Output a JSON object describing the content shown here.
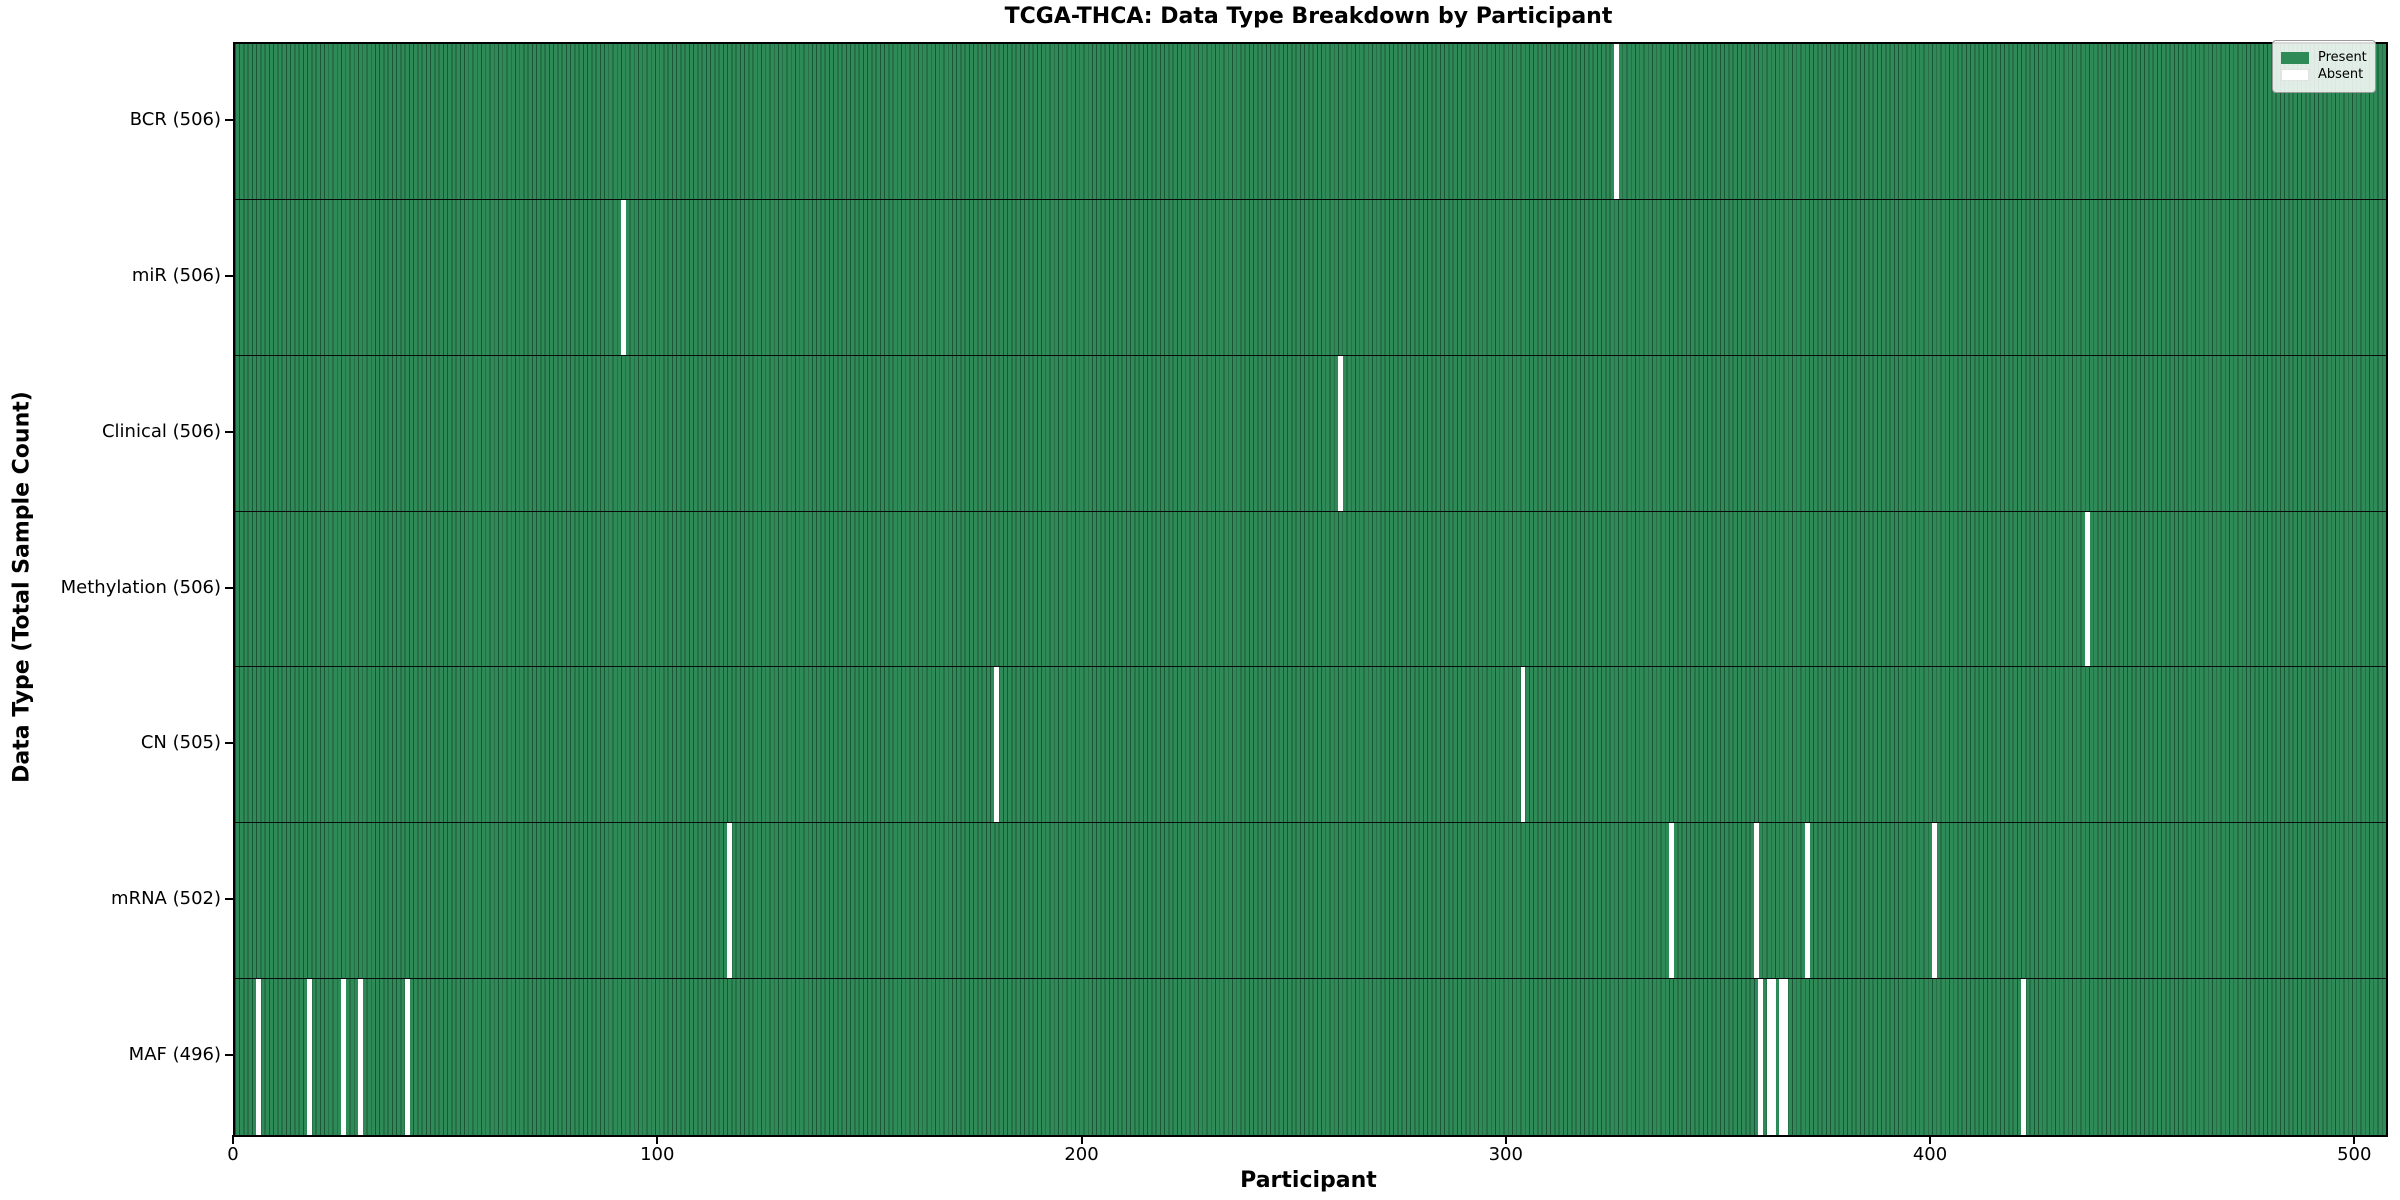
{
  "chart_data": {
    "type": "heatmap",
    "title": "TCGA-THCA: Data Type Breakdown by Participant",
    "xlabel": "Participant",
    "ylabel": "Data Type (Total Sample Count)",
    "x_ticks": [
      0,
      100,
      200,
      300,
      400,
      500
    ],
    "x_range": [
      0,
      507
    ],
    "n_participants": 507,
    "grid": false,
    "legend_position": "upper-right",
    "legend": [
      {
        "label": "Present",
        "color": "#2e8b57"
      },
      {
        "label": "Absent",
        "color": "#ffffff"
      }
    ],
    "colors": {
      "present": "#2e8b57",
      "absent": "#ffffff",
      "bar_edge": "#1d5438",
      "row_separator": "#0a0a0a"
    },
    "rows": [
      {
        "label": "BCR (506)",
        "data_type": "BCR",
        "present_count": 506,
        "absent_participants": [
          325
        ]
      },
      {
        "label": "miR (506)",
        "data_type": "miR",
        "present_count": 506,
        "absent_participants": [
          91
        ]
      },
      {
        "label": "Clinical (506)",
        "data_type": "Clinical",
        "present_count": 506,
        "absent_participants": [
          260
        ]
      },
      {
        "label": "Methylation (506)",
        "data_type": "Methylation",
        "present_count": 506,
        "absent_participants": [
          436
        ]
      },
      {
        "label": "CN (505)",
        "data_type": "CN",
        "present_count": 505,
        "absent_participants": [
          179,
          303
        ]
      },
      {
        "label": "mRNA (502)",
        "data_type": "mRNA",
        "present_count": 502,
        "absent_participants": [
          116,
          338,
          358,
          370,
          400
        ]
      },
      {
        "label": "MAF (496)",
        "data_type": "MAF",
        "present_count": 496,
        "absent_participants": [
          5,
          17,
          25,
          29,
          40,
          359,
          361,
          362,
          364,
          365,
          421
        ]
      }
    ]
  }
}
